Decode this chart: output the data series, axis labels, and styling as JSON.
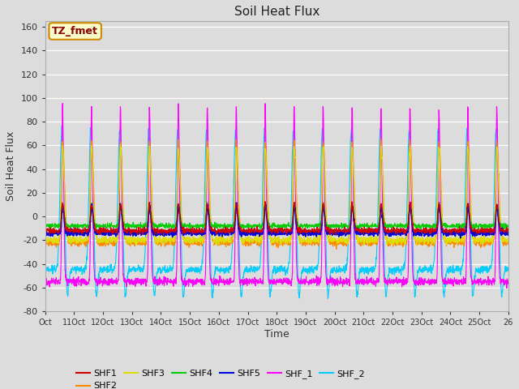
{
  "title": "Soil Heat Flux",
  "xlabel": "Time",
  "ylabel": "Soil Heat Flux",
  "ylim": [
    -80,
    165
  ],
  "yticks": [
    -80,
    -60,
    -40,
    -20,
    0,
    20,
    40,
    60,
    80,
    100,
    120,
    140,
    160
  ],
  "xtick_labels": [
    "Oct",
    "11Oct",
    "12Oct",
    "13Oct",
    "14Oct",
    "15Oct",
    "16Oct",
    "17Oct",
    "18Oct",
    "19Oct",
    "20Oct",
    "21Oct",
    "22Oct",
    "23Oct",
    "24Oct",
    "25Oct",
    "26"
  ],
  "series_colors": {
    "SHF1": "#cc0000",
    "SHF2": "#ff8800",
    "SHF3": "#dddd00",
    "SHF4": "#00cc00",
    "SHF5": "#0000dd",
    "SHF_1": "#ff00ff",
    "SHF_2": "#00ccff"
  },
  "n_days": 16,
  "samples_per_day": 144,
  "background_color": "#dcdcdc",
  "plot_bg_color": "#dcdcdc",
  "annotation_text": "TZ_fmet",
  "annotation_bg": "#ffffcc",
  "annotation_border": "#cc8800"
}
